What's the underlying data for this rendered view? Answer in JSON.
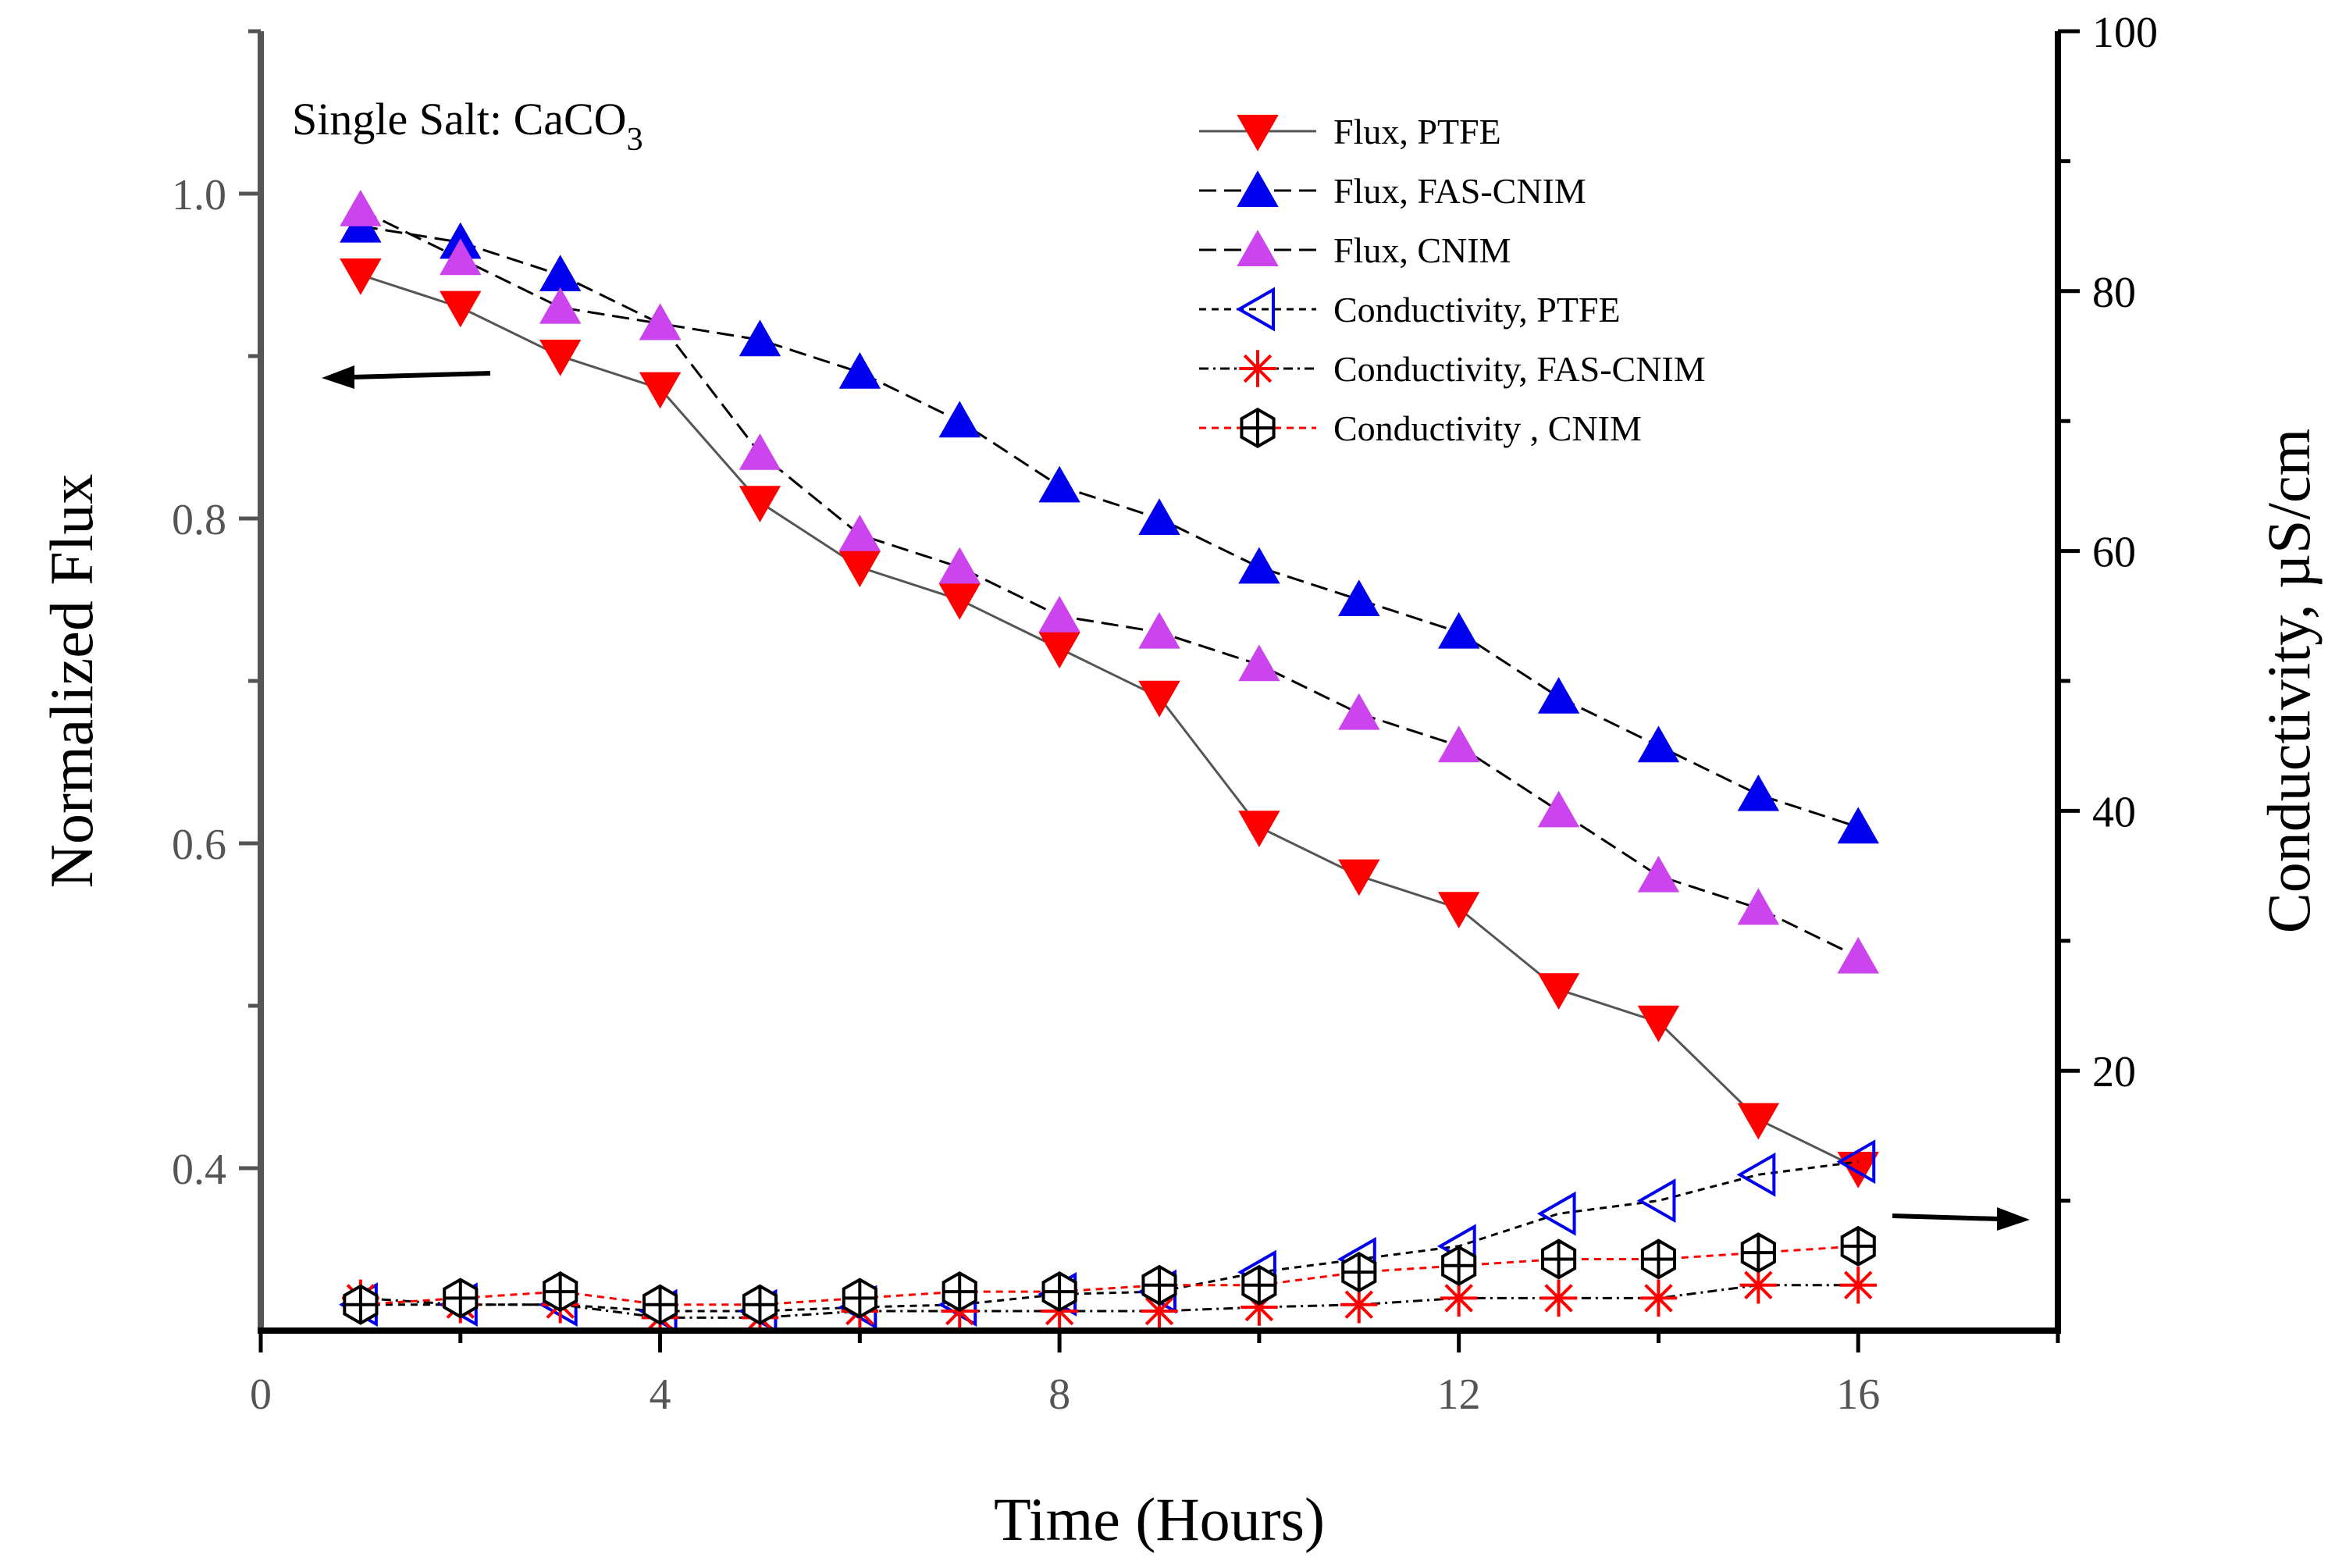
{
  "chart_data": {
    "type": "line",
    "title": "",
    "annotation": {
      "prefix": "Single Salt: CaCO",
      "subscript": "3"
    },
    "xlabel": "Time (Hours)",
    "ylabel_left": "Normalized Flux",
    "ylabel_right": "Conductivity, µS/cm",
    "xlim": [
      0,
      18
    ],
    "ylim_left": [
      0.3,
      1.1
    ],
    "ylim_right": [
      0,
      100
    ],
    "x_ticks": [
      0,
      4,
      8,
      12,
      16
    ],
    "x_tick_labels": [
      "0",
      "4",
      "8",
      "12",
      "16"
    ],
    "y_left_ticks": [
      0.4,
      0.6,
      0.8,
      1.0
    ],
    "y_left_tick_labels": [
      "0.4",
      "0.6",
      "0.8",
      "1.0"
    ],
    "y_right_ticks": [
      20,
      40,
      60,
      80,
      100
    ],
    "y_right_tick_labels": [
      "20",
      "40",
      "60",
      "80",
      "100"
    ],
    "grid": false,
    "legend_position": "top-right",
    "x": [
      1,
      2,
      3,
      4,
      5,
      6,
      7,
      8,
      9,
      10,
      11,
      12,
      13,
      14,
      15,
      16
    ],
    "series": [
      {
        "name": "Flux, PTFE",
        "axis": "left",
        "marker": "triangle-down",
        "color": "#ff0000",
        "line_color": "#555555",
        "dash": "solid",
        "values": [
          0.95,
          0.93,
          0.9,
          0.88,
          0.81,
          0.77,
          0.75,
          0.72,
          0.69,
          0.61,
          0.58,
          0.56,
          0.51,
          0.49,
          0.43,
          0.4
        ]
      },
      {
        "name": "Flux, FAS-CNIM",
        "axis": "left",
        "marker": "triangle-up",
        "color": "#0000ee",
        "line_color": "#000000",
        "dash": "long",
        "values": [
          0.98,
          0.97,
          0.95,
          0.92,
          0.91,
          0.89,
          0.86,
          0.82,
          0.8,
          0.77,
          0.75,
          0.73,
          0.69,
          0.66,
          0.63,
          0.61
        ]
      },
      {
        "name": "Flux, CNIM",
        "axis": "left",
        "marker": "triangle-up",
        "color": "#cc44ee",
        "line_color": "#000000",
        "dash": "long",
        "values": [
          0.99,
          0.96,
          0.93,
          0.92,
          0.84,
          0.79,
          0.77,
          0.74,
          0.73,
          0.71,
          0.68,
          0.66,
          0.62,
          0.58,
          0.56,
          0.53
        ]
      },
      {
        "name": "Conductivity, PTFE",
        "axis": "right",
        "marker": "triangle-left-open",
        "color": "#0000ee",
        "line_color": "#000000",
        "dash": "short",
        "values": [
          2.0,
          2.0,
          2.0,
          1.5,
          1.5,
          1.8,
          2.0,
          2.8,
          3.0,
          4.5,
          5.5,
          6.5,
          9.0,
          10.0,
          12.0,
          13.0
        ]
      },
      {
        "name": "Conductivity, FAS-CNIM",
        "axis": "right",
        "marker": "asterisk",
        "color": "#ff0000",
        "line_color": "#000000",
        "dash": "dashdot",
        "values": [
          2.5,
          2.0,
          2.0,
          1.0,
          1.0,
          1.5,
          1.5,
          1.5,
          1.5,
          1.8,
          2.0,
          2.5,
          2.5,
          2.5,
          3.5,
          3.5
        ]
      },
      {
        "name": "Conductivity , CNIM",
        "axis": "right",
        "marker": "hexagon-cross",
        "color": "#000000",
        "line_color": "#ff0000",
        "dash": "short",
        "values": [
          2.0,
          2.5,
          3.0,
          2.0,
          2.0,
          2.5,
          3.0,
          3.0,
          3.5,
          3.5,
          4.5,
          5.0,
          5.5,
          5.5,
          6.0,
          6.5
        ]
      }
    ],
    "annotations": [
      {
        "type": "arrow",
        "direction": "left",
        "target_axis": "left"
      },
      {
        "type": "arrow",
        "direction": "right",
        "target_axis": "right"
      }
    ]
  }
}
